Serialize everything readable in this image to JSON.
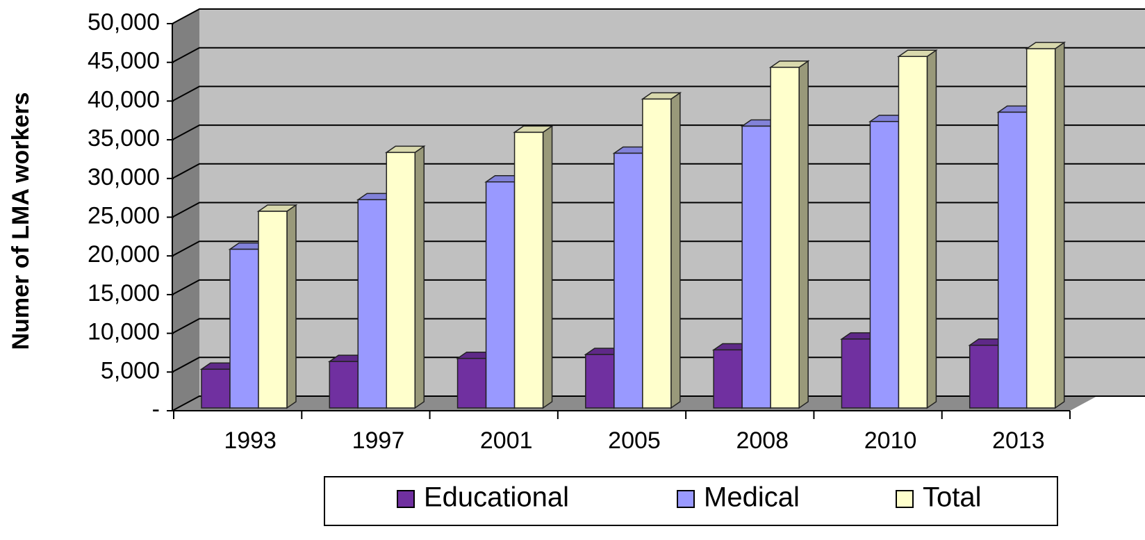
{
  "chart_data": {
    "type": "bar3d",
    "y_label": "Numer of LMA workers",
    "categories": [
      "1993",
      "1997",
      "2001",
      "2005",
      "2008",
      "2010",
      "2013"
    ],
    "series": [
      {
        "name": "Educational",
        "color": "#7030a0",
        "values": [
          5000,
          6000,
          6400,
          6900,
          7500,
          8900,
          8100
        ]
      },
      {
        "name": "Medical",
        "color": "#9999ff",
        "values": [
          20500,
          26900,
          29200,
          32900,
          36400,
          37000,
          38200
        ]
      },
      {
        "name": "Total",
        "color": "#ffffcc",
        "values": [
          25400,
          33000,
          35600,
          39900,
          44000,
          45400,
          46400
        ]
      }
    ],
    "ylim": [
      0,
      50000
    ],
    "yticks": [
      {
        "value": 0,
        "label": "-"
      },
      {
        "value": 5000,
        "label": "5,000"
      },
      {
        "value": 10000,
        "label": "10,000"
      },
      {
        "value": 15000,
        "label": "15,000"
      },
      {
        "value": 20000,
        "label": "20,000"
      },
      {
        "value": 25000,
        "label": "25,000"
      },
      {
        "value": 30000,
        "label": "30,000"
      },
      {
        "value": 35000,
        "label": "35,000"
      },
      {
        "value": 40000,
        "label": "40,000"
      },
      {
        "value": 45000,
        "label": "45,000"
      },
      {
        "value": 50000,
        "label": "50,000"
      }
    ],
    "grid": true,
    "legend": "bottom"
  }
}
